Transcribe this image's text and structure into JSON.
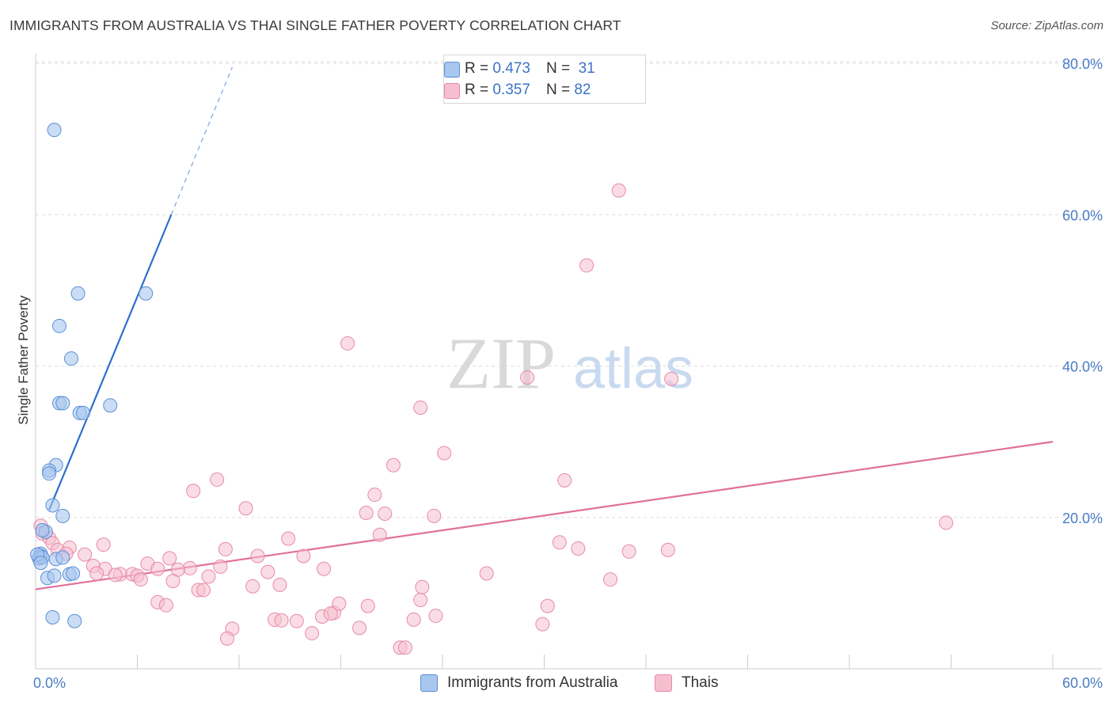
{
  "title": "IMMIGRANTS FROM AUSTRALIA VS THAI SINGLE FATHER POVERTY CORRELATION CHART",
  "source": "Source: ZipAtlas.com",
  "watermark": {
    "zip": "ZIP",
    "atlas": "atlas"
  },
  "legend": {
    "r_label": "R =",
    "n_label": "N =",
    "rows": [
      {
        "r": "0.473",
        "n": "31"
      },
      {
        "r": "0.357",
        "n": "82"
      }
    ]
  },
  "bottom_legend": [
    "Immigrants from Australia",
    "Thais"
  ],
  "colors": {
    "blue_fill": "#a9c6ee",
    "blue_stroke": "#5a8fd6",
    "blue_line": "#2d6fcc",
    "pink_fill": "#f6bfd0",
    "pink_stroke": "#e88aa8",
    "pink_line": "#e0709a",
    "tick_text": "#4a7cc4",
    "grid": "#dddddd"
  },
  "chart_data": {
    "type": "scatter",
    "xlabel": "",
    "ylabel": "Single Father Poverty",
    "xlim": [
      0,
      60
    ],
    "ylim": [
      0,
      80
    ],
    "x_tick_labels": [
      "0.0%",
      "60.0%"
    ],
    "y_ticks": [
      20,
      40,
      60,
      80
    ],
    "y_tick_labels": [
      "20.0%",
      "40.0%",
      "60.0%",
      "80.0%"
    ],
    "grid": true,
    "series": [
      {
        "name": "Immigrants from Australia",
        "points": [
          [
            1.1,
            71.2
          ],
          [
            2.5,
            49.6
          ],
          [
            6.5,
            49.6
          ],
          [
            1.4,
            45.3
          ],
          [
            2.1,
            41.0
          ],
          [
            1.4,
            35.1
          ],
          [
            1.6,
            35.1
          ],
          [
            2.6,
            33.8
          ],
          [
            2.8,
            33.8
          ],
          [
            4.4,
            34.8
          ],
          [
            1.2,
            26.9
          ],
          [
            0.8,
            26.2
          ],
          [
            0.8,
            25.8
          ],
          [
            1.0,
            21.6
          ],
          [
            1.6,
            20.2
          ],
          [
            0.6,
            18.1
          ],
          [
            0.4,
            18.3
          ],
          [
            0.3,
            15.2
          ],
          [
            0.2,
            14.6
          ],
          [
            0.3,
            14.9
          ],
          [
            0.4,
            14.7
          ],
          [
            0.1,
            15.1
          ],
          [
            0.3,
            14.0
          ],
          [
            1.2,
            14.5
          ],
          [
            1.6,
            14.7
          ],
          [
            0.7,
            12.0
          ],
          [
            1.1,
            12.3
          ],
          [
            2.0,
            12.5
          ],
          [
            2.2,
            12.6
          ],
          [
            1.0,
            6.8
          ],
          [
            2.3,
            6.3
          ]
        ],
        "trend": {
          "x": [
            0.8,
            8.0
          ],
          "y": [
            21.0,
            60.0
          ],
          "dashed_to": [
            11.6,
            79.5
          ]
        }
      },
      {
        "name": "Thais",
        "points": [
          [
            34.4,
            63.2
          ],
          [
            32.5,
            53.3
          ],
          [
            18.4,
            43.0
          ],
          [
            29.0,
            38.5
          ],
          [
            37.5,
            38.3
          ],
          [
            22.7,
            34.5
          ],
          [
            24.1,
            28.5
          ],
          [
            21.1,
            26.9
          ],
          [
            31.2,
            24.9
          ],
          [
            10.7,
            25.0
          ],
          [
            9.3,
            23.5
          ],
          [
            20.0,
            23.0
          ],
          [
            12.4,
            21.2
          ],
          [
            19.5,
            20.6
          ],
          [
            20.6,
            20.5
          ],
          [
            23.5,
            20.2
          ],
          [
            53.7,
            19.3
          ],
          [
            20.3,
            17.7
          ],
          [
            14.9,
            17.2
          ],
          [
            30.9,
            16.7
          ],
          [
            32.0,
            15.9
          ],
          [
            35.0,
            15.5
          ],
          [
            37.3,
            15.7
          ],
          [
            0.3,
            18.9
          ],
          [
            0.4,
            17.9
          ],
          [
            0.8,
            17.3
          ],
          [
            1.0,
            16.6
          ],
          [
            1.3,
            15.7
          ],
          [
            2.0,
            16.0
          ],
          [
            1.8,
            15.2
          ],
          [
            2.9,
            15.1
          ],
          [
            4.0,
            16.4
          ],
          [
            11.2,
            15.8
          ],
          [
            13.1,
            14.9
          ],
          [
            15.8,
            14.9
          ],
          [
            7.9,
            14.6
          ],
          [
            6.6,
            13.9
          ],
          [
            7.2,
            13.2
          ],
          [
            9.1,
            13.3
          ],
          [
            3.4,
            13.6
          ],
          [
            4.1,
            13.2
          ],
          [
            5.0,
            12.5
          ],
          [
            5.7,
            12.5
          ],
          [
            6.0,
            12.3
          ],
          [
            6.2,
            11.8
          ],
          [
            3.6,
            12.6
          ],
          [
            4.7,
            12.4
          ],
          [
            8.4,
            13.1
          ],
          [
            10.2,
            12.2
          ],
          [
            10.9,
            13.5
          ],
          [
            13.7,
            12.8
          ],
          [
            17.0,
            13.2
          ],
          [
            26.6,
            12.6
          ],
          [
            33.9,
            11.8
          ],
          [
            8.1,
            11.6
          ],
          [
            9.6,
            10.4
          ],
          [
            9.9,
            10.4
          ],
          [
            12.8,
            10.9
          ],
          [
            14.4,
            11.1
          ],
          [
            22.8,
            10.8
          ],
          [
            7.2,
            8.8
          ],
          [
            7.7,
            8.4
          ],
          [
            17.6,
            7.4
          ],
          [
            17.9,
            8.6
          ],
          [
            19.6,
            8.3
          ],
          [
            22.7,
            9.1
          ],
          [
            30.2,
            8.3
          ],
          [
            14.1,
            6.5
          ],
          [
            14.5,
            6.4
          ],
          [
            15.4,
            6.3
          ],
          [
            16.9,
            6.9
          ],
          [
            17.4,
            7.3
          ],
          [
            22.3,
            6.5
          ],
          [
            23.6,
            7.0
          ],
          [
            29.9,
            5.9
          ],
          [
            11.6,
            5.3
          ],
          [
            11.3,
            4.0
          ],
          [
            16.3,
            4.7
          ],
          [
            19.1,
            5.4
          ],
          [
            21.5,
            2.8
          ],
          [
            21.8,
            2.8
          ],
          [
            0.2,
            14.6
          ]
        ],
        "trend": {
          "x": [
            0,
            60
          ],
          "y": [
            10.5,
            30.0
          ]
        }
      }
    ]
  }
}
